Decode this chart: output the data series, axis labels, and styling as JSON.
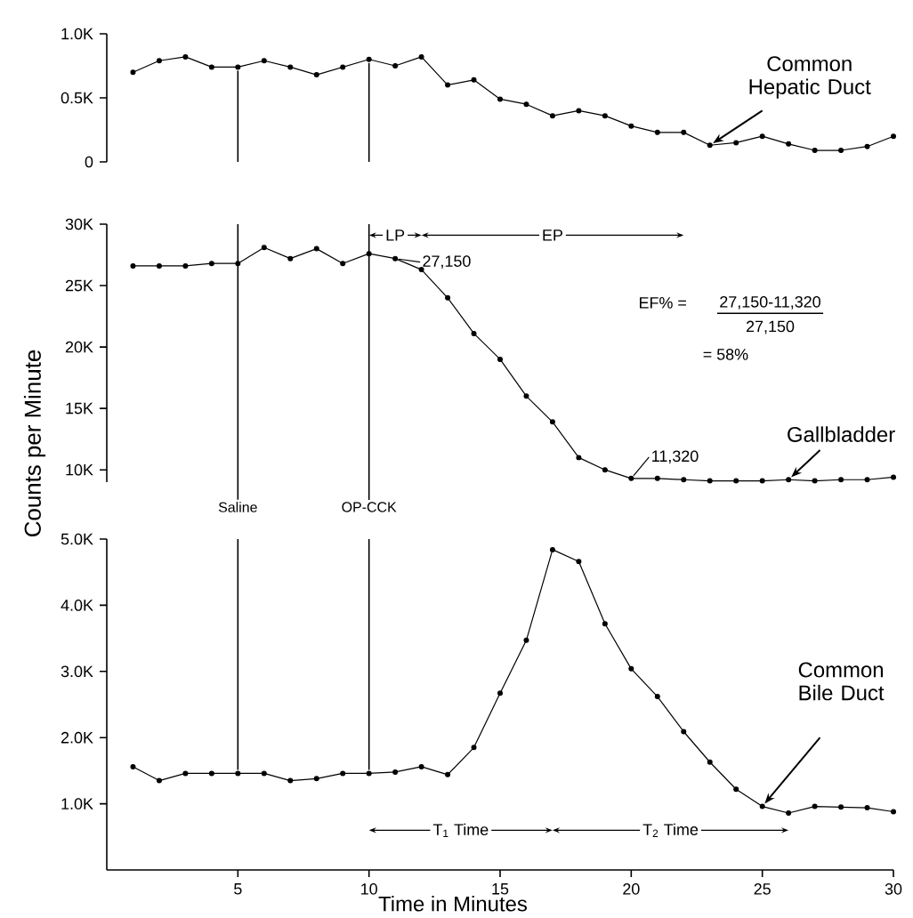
{
  "chart_data": [
    {
      "type": "line",
      "x": [
        1,
        2,
        3,
        4,
        5,
        6,
        7,
        8,
        9,
        10,
        11,
        12,
        13,
        14,
        15,
        16,
        17,
        18,
        19,
        20,
        21,
        22,
        23,
        24,
        25,
        26,
        27,
        28,
        29,
        30
      ],
      "series": [
        {
          "name": "Common Hepatic Duct",
          "color": "#000000",
          "values": [
            0.7,
            0.79,
            0.82,
            0.74,
            0.74,
            0.79,
            0.74,
            0.68,
            0.74,
            0.8,
            0.75,
            0.82,
            0.6,
            0.64,
            0.49,
            0.45,
            0.36,
            0.4,
            0.36,
            0.28,
            0.23,
            0.23,
            0.13,
            0.15,
            0.2,
            0.14,
            0.09,
            0.09,
            0.12,
            0.2
          ]
        }
      ],
      "xlim": [
        0,
        30
      ],
      "ylim": [
        0,
        1.0
      ],
      "yticks": [
        0,
        {
          "value": 0.5,
          "label": "0.5K"
        },
        {
          "value": 1.0,
          "label": "1.0K"
        }
      ],
      "tick_labels": "y",
      "marker": "circle",
      "line_style": "solid",
      "ref_lines": [
        {
          "axis": "x",
          "value": 5
        },
        {
          "axis": "x",
          "value": 10
        }
      ]
    },
    {
      "type": "line",
      "x": [
        1,
        2,
        3,
        4,
        5,
        6,
        7,
        8,
        9,
        10,
        11,
        12,
        13,
        14,
        15,
        16,
        17,
        18,
        19,
        20,
        21,
        22,
        23,
        24,
        25,
        26,
        27,
        28,
        29,
        30
      ],
      "series": [
        {
          "name": "Gallbladder",
          "color": "#000000",
          "values": [
            26.6,
            26.6,
            26.6,
            26.8,
            26.8,
            28.1,
            27.2,
            28.0,
            26.8,
            27.6,
            27.2,
            26.3,
            24.0,
            21.1,
            19.0,
            16.0,
            13.9,
            11.0,
            10.0,
            9.3,
            9.3,
            9.2,
            9.1,
            9.1,
            9.1,
            9.2,
            9.1,
            9.2,
            9.2,
            9.4
          ]
        }
      ],
      "ylabel": "Counts per Minute",
      "xlim": [
        0,
        30
      ],
      "ylim": [
        9,
        30
      ],
      "yticks": [
        {
          "value": 10,
          "label": "10K"
        },
        {
          "value": 15,
          "label": "15K"
        },
        {
          "value": 20,
          "label": "20K"
        },
        {
          "value": 25,
          "label": "25K"
        },
        {
          "value": 30,
          "label": "30K"
        }
      ],
      "tick_labels": "y",
      "marker": "circle",
      "line_style": "solid",
      "ref_lines": [
        {
          "axis": "x",
          "value": 5,
          "label": "Saline"
        },
        {
          "axis": "x",
          "value": 10,
          "label": "OP-CCK"
        }
      ],
      "annotations": [
        {
          "text": "27,150",
          "x": 11,
          "y": 27.2
        },
        {
          "text": "11,320",
          "x": 20,
          "y": 9.3
        },
        "LP",
        "EP",
        "EF% =",
        "27,150-11,320",
        "27,150",
        "= 58%"
      ]
    },
    {
      "type": "line",
      "x": [
        1,
        2,
        3,
        4,
        5,
        6,
        7,
        8,
        9,
        10,
        11,
        12,
        13,
        14,
        15,
        16,
        17,
        18,
        19,
        20,
        21,
        22,
        23,
        24,
        25,
        26,
        27,
        28,
        29,
        30
      ],
      "series": [
        {
          "name": "Common Bile Duct",
          "color": "#000000",
          "values": [
            1.56,
            1.35,
            1.46,
            1.46,
            1.46,
            1.46,
            1.35,
            1.38,
            1.46,
            1.46,
            1.48,
            1.56,
            1.44,
            1.85,
            2.67,
            3.47,
            4.84,
            4.66,
            3.72,
            3.04,
            2.62,
            2.09,
            1.63,
            1.22,
            0.96,
            0.86,
            0.96,
            0.95,
            0.94,
            0.88
          ]
        }
      ],
      "xlabel": "Time in Minutes",
      "xlim": [
        0,
        30
      ],
      "ylim": [
        0,
        5.0
      ],
      "xticks": [
        5,
        10,
        15,
        20,
        25,
        30
      ],
      "yticks": [
        {
          "value": 1.0,
          "label": "1.0K"
        },
        {
          "value": 2.0,
          "label": "2.0K"
        },
        {
          "value": 3.0,
          "label": "3.0K"
        },
        {
          "value": 4.0,
          "label": "4.0K"
        },
        {
          "value": 5.0,
          "label": "5.0K"
        }
      ],
      "marker": "circle",
      "line_style": "solid",
      "ref_lines": [
        {
          "axis": "x",
          "value": 5
        },
        {
          "axis": "x",
          "value": 10
        }
      ],
      "annotations": [
        "T$_{1}$ Time",
        "T$_{2}$ Time"
      ]
    }
  ]
}
